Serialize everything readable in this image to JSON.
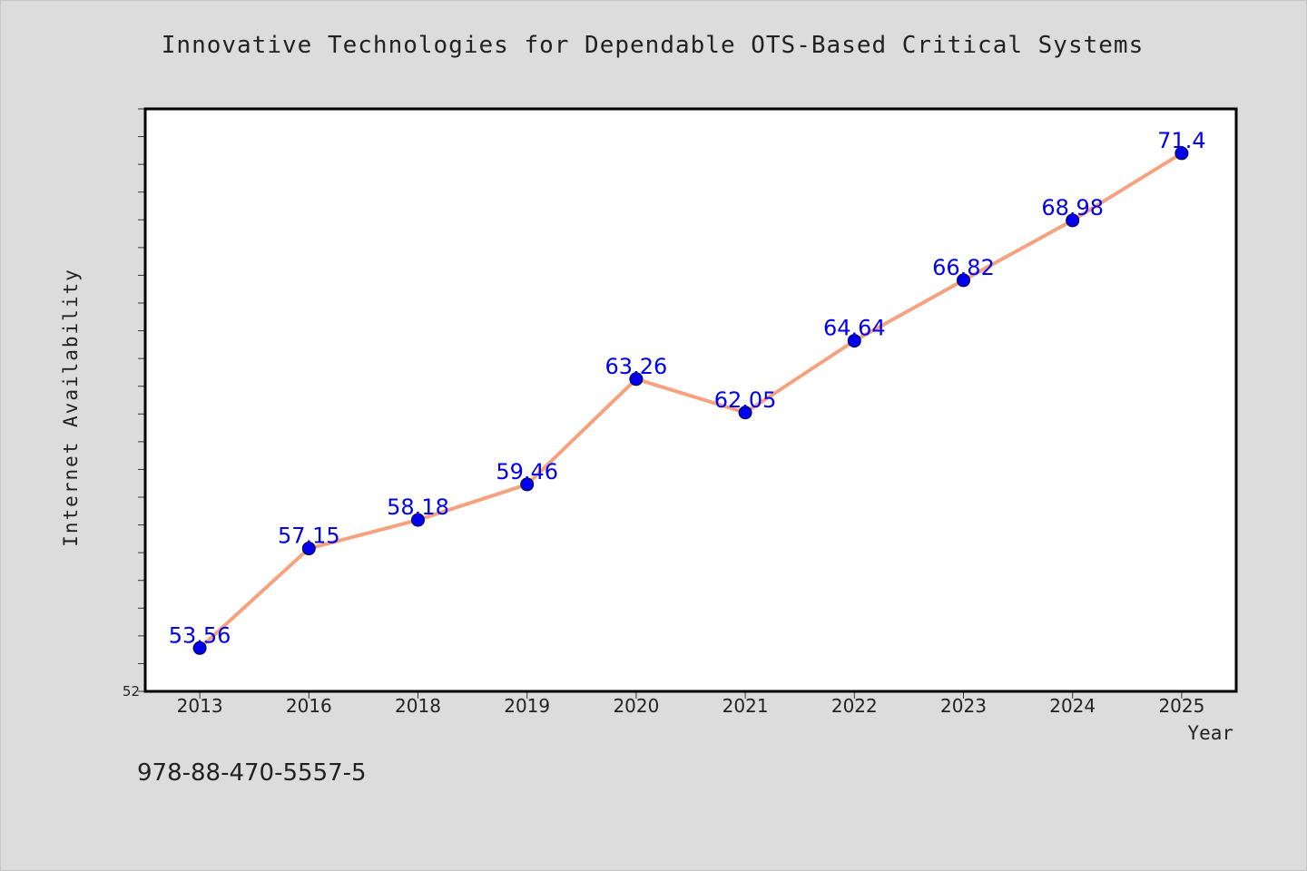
{
  "chart_data": {
    "type": "line",
    "title": "Innovative Technologies for Dependable OTS-Based Critical Systems",
    "xlabel": "Year",
    "ylabel": "Internet Availability",
    "categories": [
      "2013",
      "2016",
      "2018",
      "2019",
      "2020",
      "2021",
      "2022",
      "2023",
      "2024",
      "2025"
    ],
    "series": [
      {
        "values": [
          53.56,
          57.15,
          58.18,
          59.46,
          63.26,
          62.05,
          64.64,
          66.82,
          68.98,
          71.4
        ]
      }
    ],
    "ylim": [
      52,
      73
    ],
    "y_min_label": "52",
    "grid": false,
    "data_labels": true
  },
  "colors": {
    "background": "#dcdcdc",
    "plot_background": "#ffffff",
    "line": "#f5a27e",
    "marker": "#0000ee",
    "data_label": "#0000ee"
  },
  "footnote": "978-88-470-5557-5"
}
